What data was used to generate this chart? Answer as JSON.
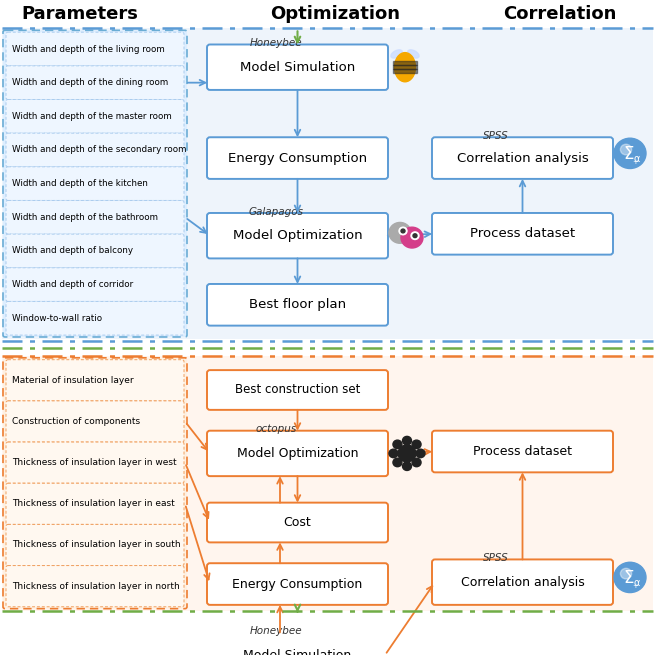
{
  "title_params": "Parameters",
  "title_opt": "Optimization",
  "title_corr": "Correlation",
  "top_params": [
    "Width and depth of the living room",
    "Width and depth of the dining room",
    "Width and depth of the master room",
    "Width and depth of the secondary room",
    "Width and depth of the kitchen",
    "Width and depth of the bathroom",
    "Width and depth of balcony",
    "Width and depth of corridor",
    "Window-to-wall ratio"
  ],
  "bottom_params": [
    "Material of insulation layer",
    "Construction of components",
    "Thickness of insulation layer in west",
    "Thickness of insulation layer in east",
    "Thickness of insulation layer in south",
    "Thickness of insulation layer in north"
  ],
  "blue_border": "#5b9bd5",
  "orange_border": "#ed7d31",
  "green_arrow": "#70ad47",
  "header_color": "#000000",
  "dashdot_blue": "#5b9bd5",
  "dashdot_green": "#70ad47",
  "dashdot_orange": "#ed7d31",
  "top_bg": "#eef4fb",
  "bot_bg": "#fff5ee"
}
